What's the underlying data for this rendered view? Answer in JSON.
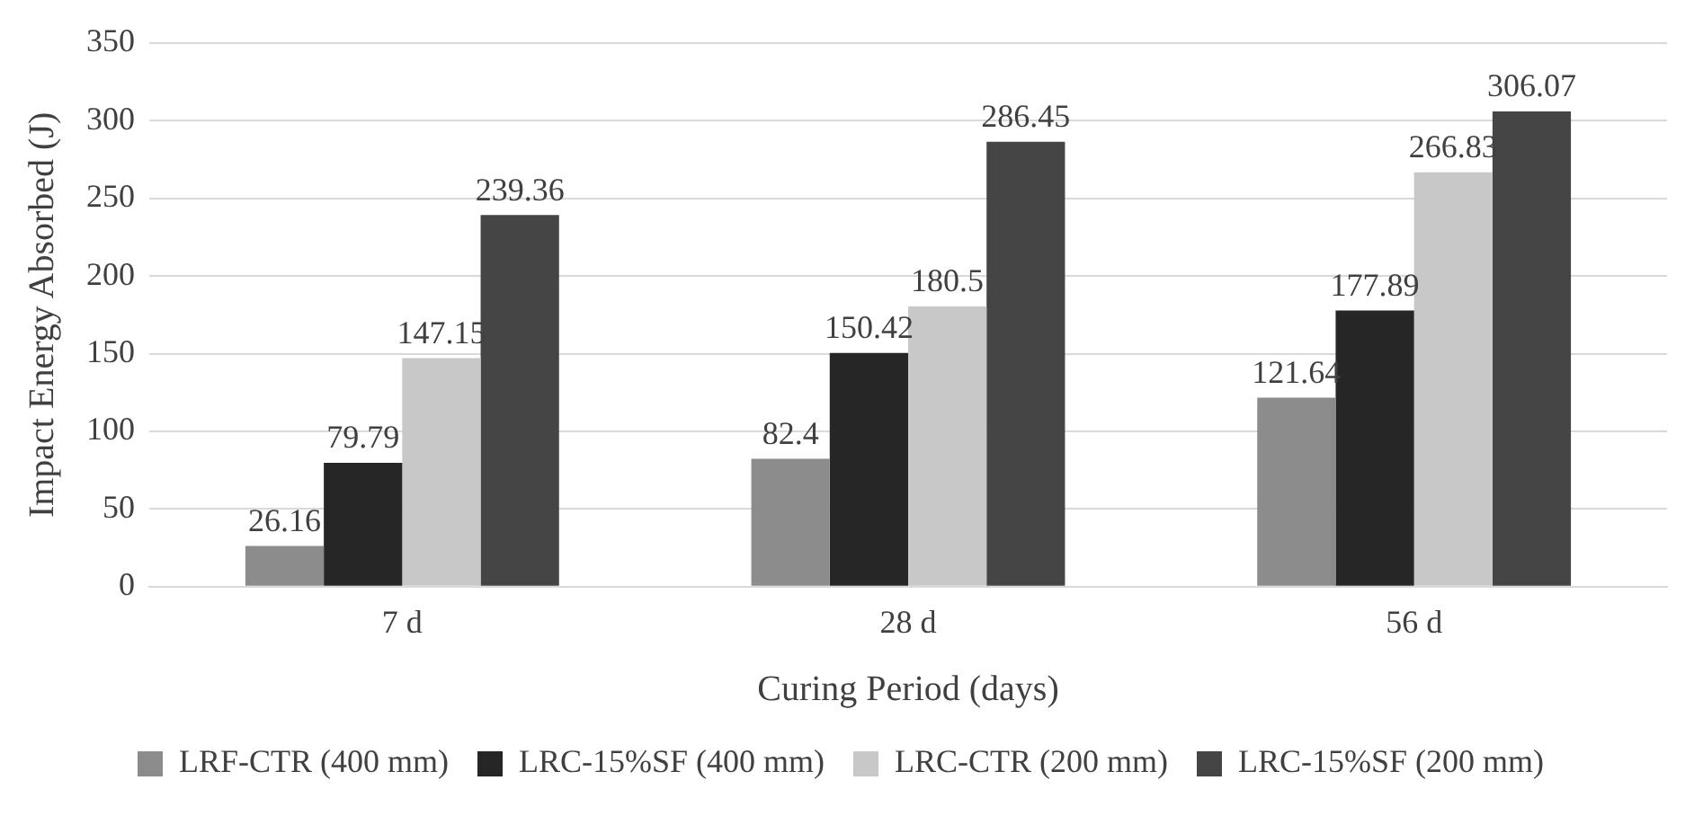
{
  "chart_data": {
    "type": "bar",
    "xlabel": "Curing Period (days)",
    "ylabel": "Impact Energy Absorbed (J)",
    "categories": [
      "7 d",
      "28 d",
      "56 d"
    ],
    "series": [
      {
        "name": "LRF-CTR (400 mm)",
        "color": "#8c8c8c",
        "values": [
          26.16,
          82.4,
          121.64
        ]
      },
      {
        "name": "LRC-15%SF (400 mm)",
        "color": "#262626",
        "values": [
          79.79,
          150.42,
          177.89
        ]
      },
      {
        "name": "LRC-CTR (200 mm)",
        "color": "#c8c8c8",
        "values": [
          147.15,
          180.5,
          266.83
        ]
      },
      {
        "name": "LRC-15%SF (200 mm)",
        "color": "#454545",
        "values": [
          239.36,
          286.45,
          306.07
        ]
      }
    ],
    "ylim": [
      0,
      350
    ],
    "yticks": [
      0,
      50,
      100,
      150,
      200,
      250,
      300,
      350
    ],
    "grid": "y",
    "legend": "bottom",
    "data_labels": true
  }
}
